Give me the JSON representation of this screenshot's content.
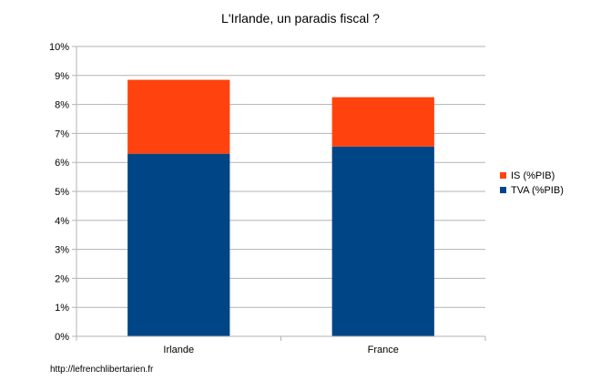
{
  "chart_data": {
    "type": "bar",
    "stacked": true,
    "title": "L'Irlande, un paradis fiscal ?",
    "categories": [
      "Irlande",
      "France"
    ],
    "series": [
      {
        "name": "TVA (%PIB)",
        "values": [
          6.3,
          6.55
        ],
        "color": "#004586"
      },
      {
        "name": "IS (%PIB)",
        "values": [
          2.55,
          1.7
        ],
        "color": "#ff420e"
      }
    ],
    "yticks": [
      "0%",
      "1%",
      "2%",
      "3%",
      "4%",
      "5%",
      "6%",
      "7%",
      "8%",
      "9%",
      "10%"
    ],
    "ylim": [
      0,
      10
    ],
    "grid": true,
    "legend_position": "right",
    "legend_order": [
      "IS (%PIB)",
      "TVA (%PIB)"
    ]
  },
  "source_text": "http://lefrenchlibertarien.fr"
}
